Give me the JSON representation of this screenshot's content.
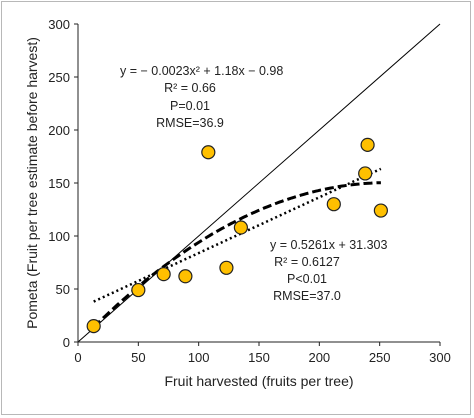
{
  "chart_data": {
    "type": "scatter",
    "xlabel": "Fruit harvested (fruits per tree)",
    "ylabel": "Pometa (Fruit per tree estimate before harvest)",
    "xlim": [
      0,
      300
    ],
    "ylim": [
      0,
      300
    ],
    "x_ticks": [
      "0",
      "50",
      "100",
      "150",
      "200",
      "250",
      "300"
    ],
    "y_ticks": [
      "0",
      "50",
      "100",
      "150",
      "200",
      "250",
      "300"
    ],
    "grid": false,
    "legend": "none",
    "points": [
      {
        "x": 13,
        "y": 15
      },
      {
        "x": 50,
        "y": 49
      },
      {
        "x": 71,
        "y": 64
      },
      {
        "x": 89,
        "y": 62
      },
      {
        "x": 108,
        "y": 179
      },
      {
        "x": 123,
        "y": 70
      },
      {
        "x": 135,
        "y": 108
      },
      {
        "x": 212,
        "y": 130
      },
      {
        "x": 238,
        "y": 159
      },
      {
        "x": 240,
        "y": 186
      },
      {
        "x": 251,
        "y": 124
      }
    ],
    "reference_line": {
      "slope": 1,
      "intercept": 0
    },
    "quadratic_fit": {
      "a": -0.0023,
      "b": 1.18,
      "c": -0.98,
      "x_range": [
        13,
        251
      ]
    },
    "linear_fit": {
      "slope": 0.5261,
      "intercept": 31.303,
      "x_range": [
        13,
        251
      ]
    },
    "annotations": {
      "quadratic": [
        "y = − 0.0023x² + 1.18x − 0.98",
        "R² = 0.66",
        "P=0.01",
        "RMSE=36.9"
      ],
      "linear": [
        "y = 0.5261x + 31.303",
        "R² = 0.6127",
        "P<0.01",
        "RMSE=37.0"
      ]
    },
    "colors": {
      "point_fill": "#FFC000",
      "point_stroke": "#222222",
      "line": "#000000"
    }
  }
}
